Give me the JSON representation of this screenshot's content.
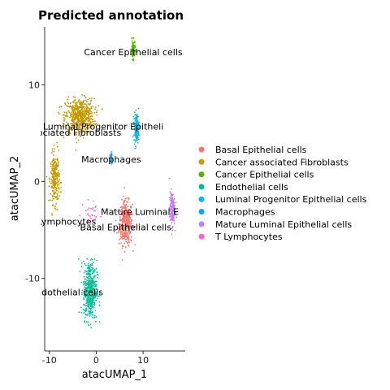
{
  "chart_data": {
    "type": "scatter",
    "title": "Predicted annotation",
    "xlabel": "atacUMAP_1",
    "ylabel": "atacUMAP_2",
    "xlim": [
      -11,
      19
    ],
    "ylim": [
      -17.5,
      16
    ],
    "x_ticks": [
      -10,
      0,
      10
    ],
    "y_ticks": [
      -10,
      0,
      10
    ],
    "grid": false,
    "legend_position": "right",
    "series": [
      {
        "name": "Basal Epithelial cells",
        "color": "#F8766D",
        "clusters": [
          {
            "cx": 6.3,
            "cy": -4.3,
            "sx": 0.9,
            "sy": 1.4,
            "n": 420
          }
        ]
      },
      {
        "name": "Cancer associated Fibroblasts",
        "color": "#C49A00",
        "clusters": [
          {
            "cx": -3.5,
            "cy": 6.8,
            "sx": 1.9,
            "sy": 1.1,
            "n": 620
          },
          {
            "cx": -8.8,
            "cy": 0.3,
            "sx": 0.6,
            "sy": 1.6,
            "n": 260
          }
        ]
      },
      {
        "name": "Cancer Epithelial cells",
        "color": "#53B400",
        "clusters": [
          {
            "cx": 7.9,
            "cy": 13.6,
            "sx": 0.25,
            "sy": 0.6,
            "n": 90
          }
        ]
      },
      {
        "name": "Endothelial cells",
        "color": "#00C094",
        "clusters": [
          {
            "cx": -1.3,
            "cy": -11.2,
            "sx": 0.9,
            "sy": 1.9,
            "n": 480
          }
        ]
      },
      {
        "name": "Luminal Progenitor Epithelial cells",
        "color": "#00B6EB",
        "clusters": [
          {
            "cx": 8.6,
            "cy": 5.6,
            "sx": 0.35,
            "sy": 0.9,
            "n": 160
          }
        ]
      },
      {
        "name": "Macrophages",
        "color": "#06A4FF",
        "clusters": [
          {
            "cx": 3.2,
            "cy": 2.4,
            "sx": 0.2,
            "sy": 0.4,
            "n": 45
          }
        ]
      },
      {
        "name": "Mature Luminal Epithelial cells",
        "color": "#C77CFF",
        "clusters": [
          {
            "cx": 16.2,
            "cy": -2.8,
            "sx": 0.35,
            "sy": 1.1,
            "n": 170
          }
        ]
      },
      {
        "name": "T Lymphocytes",
        "color": "#FF61CC",
        "clusters": [
          {
            "cx": -1.0,
            "cy": -3.4,
            "sx": 1.4,
            "sy": 0.9,
            "n": 30
          }
        ]
      }
    ],
    "annotations": [
      {
        "text": "Cancer Epithelial cells",
        "x": 7.9,
        "y": 13.4
      },
      {
        "text": "Luminal Progenitor Epitheli",
        "x": 1.5,
        "y": 5.7
      },
      {
        "text": "associated Fibroblasts",
        "x": -5.2,
        "y": 5.1
      },
      {
        "text": "Macrophages",
        "x": 3.2,
        "y": 2.3
      },
      {
        "text": "Mature Luminal E",
        "x": 9.3,
        "y": -3.1
      },
      {
        "text": "T Lymphocytes",
        "x": -7.2,
        "y": -4.1
      },
      {
        "text": "Basal Epithelial cells",
        "x": 6.3,
        "y": -4.7
      },
      {
        "text": "Endothelial cells",
        "x": -6.3,
        "y": -11.4
      }
    ]
  }
}
